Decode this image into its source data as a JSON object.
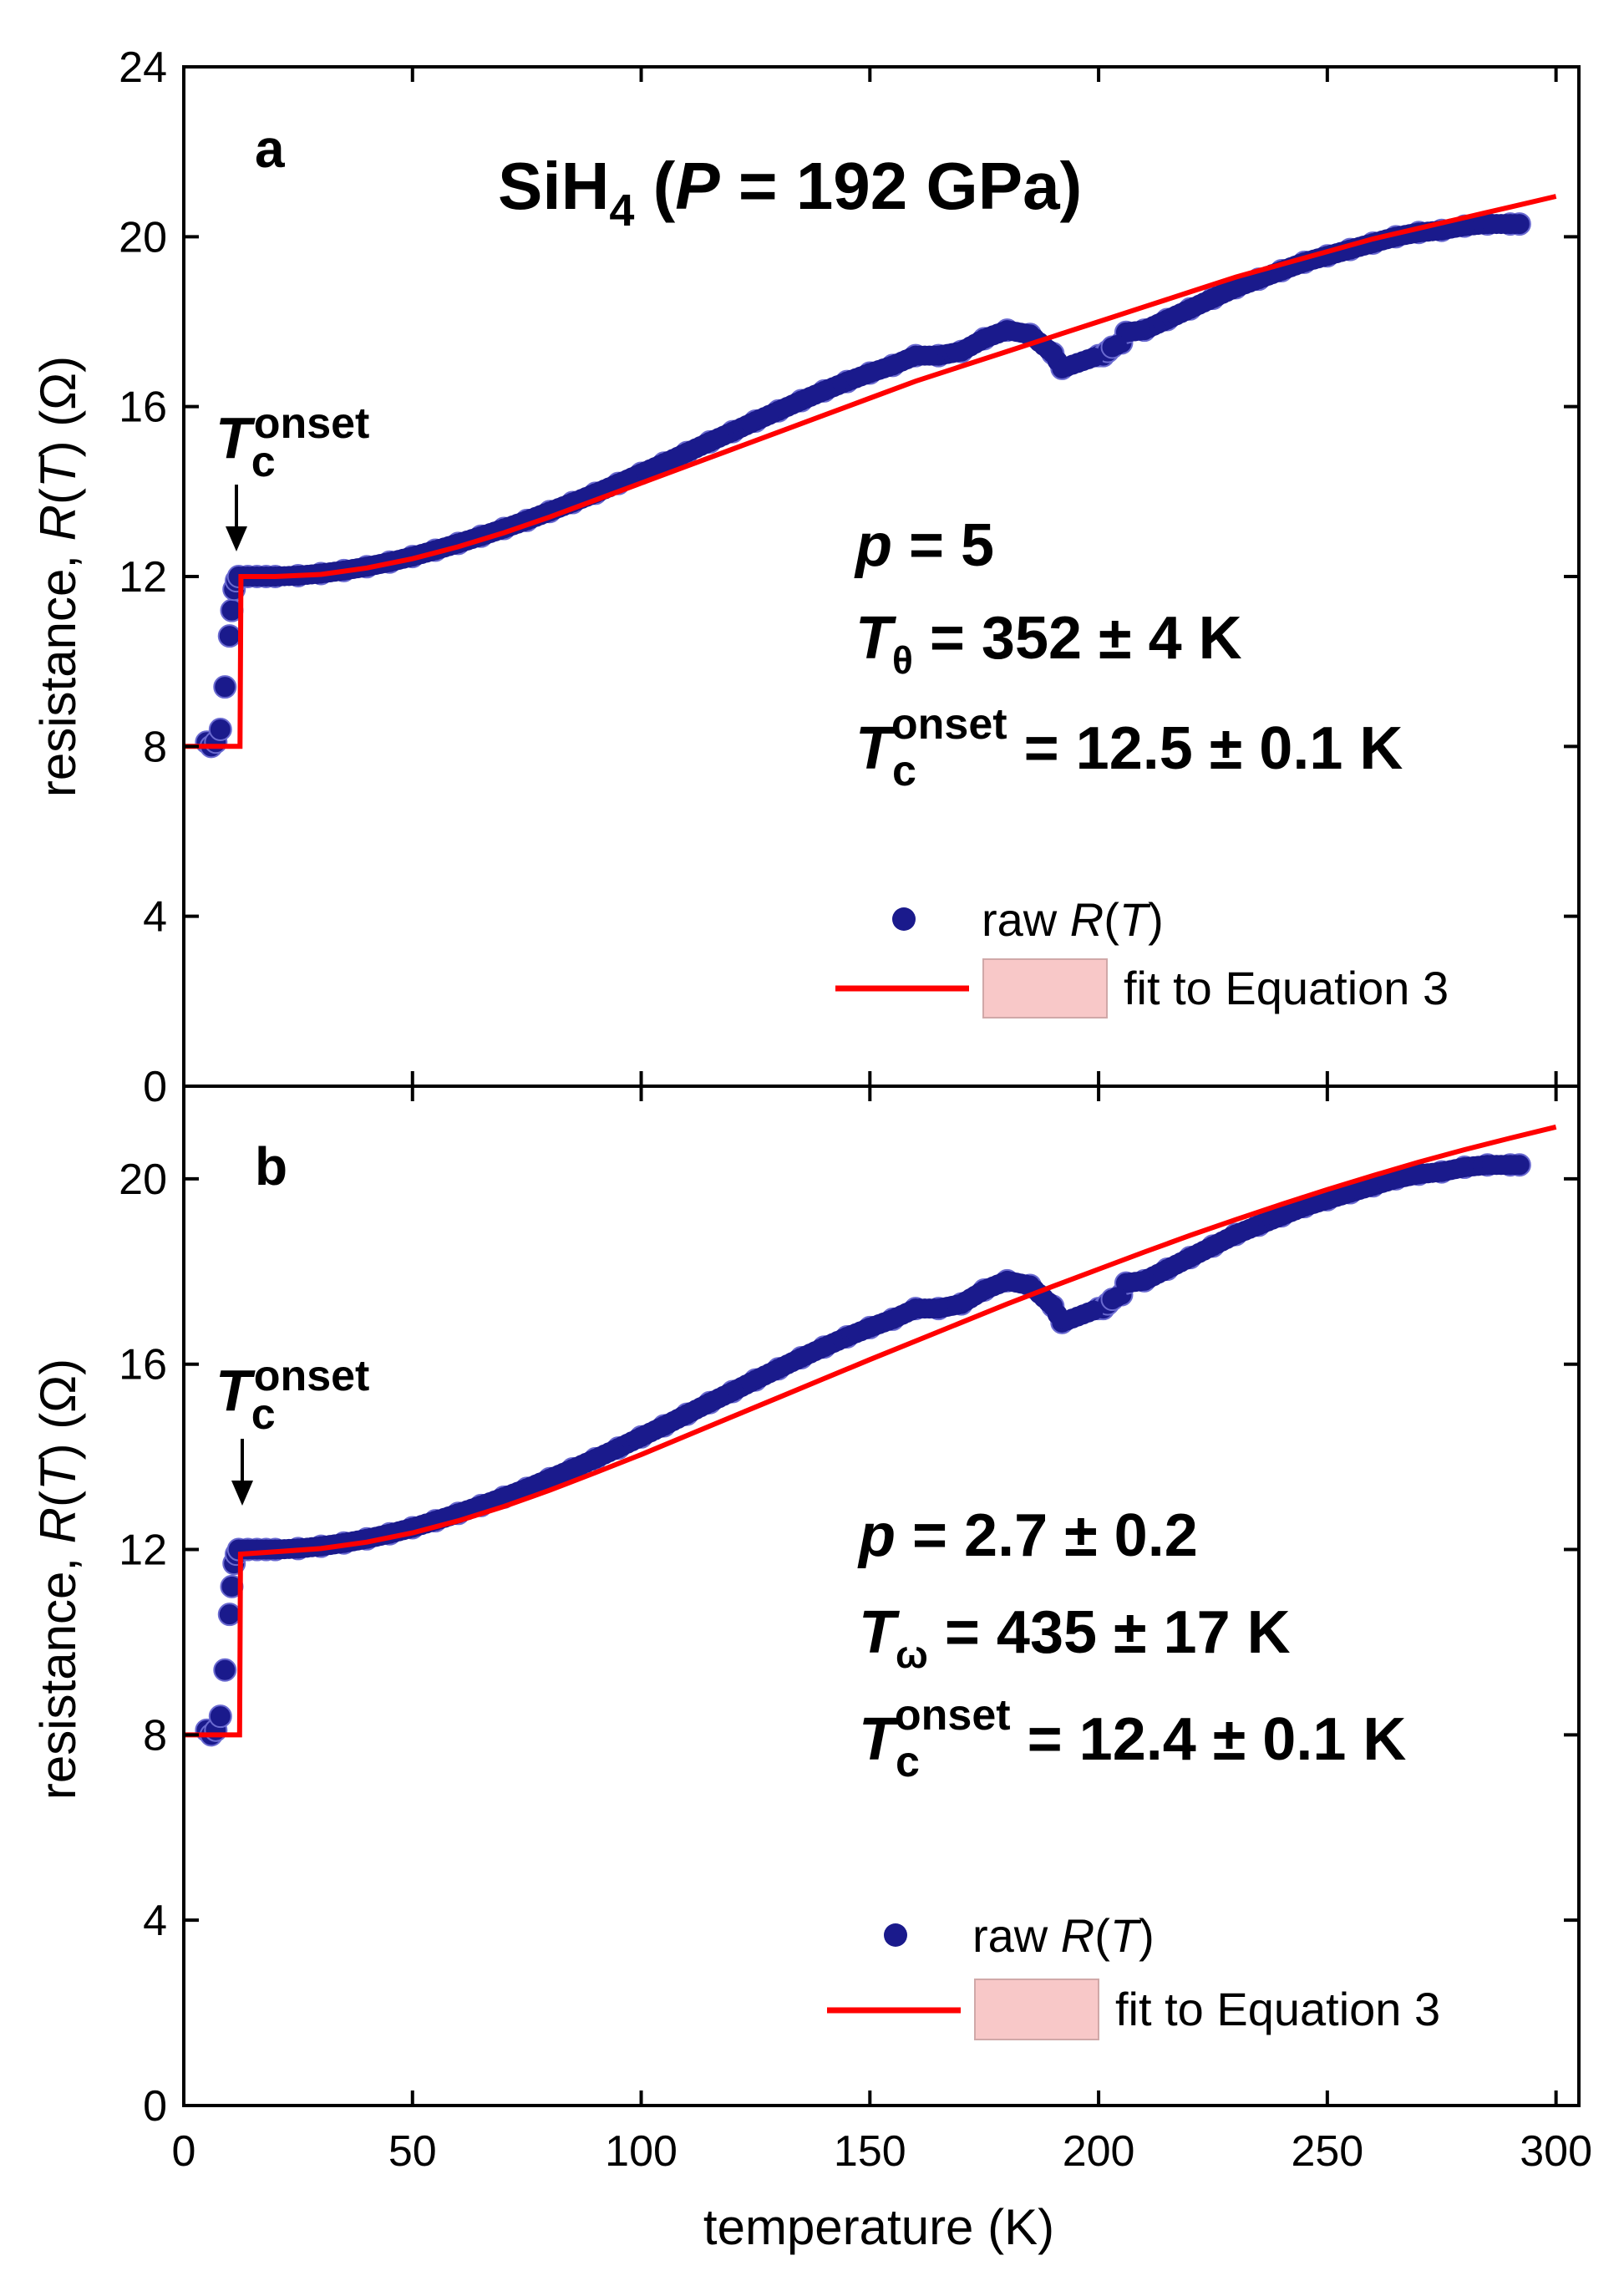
{
  "colors": {
    "raw_points": "#1a1a8c",
    "fit_line": "#ff0000",
    "fit_band": "#f8c8c8",
    "param_p": "#ff0000",
    "axes": "#000000"
  },
  "chart_data": [
    {
      "type": "scatter",
      "panel": "a",
      "title": "SiH",
      "title_sub": "4",
      "title_paren_open": " (",
      "title_var": "P",
      "title_rest": " = 192 GPa)",
      "xlabel": "temperature (K)",
      "ylabel_pre": "resistance, ",
      "ylabel_R": "R",
      "ylabel_open": "(",
      "ylabel_T": "T",
      "ylabel_post": ") (Ω)",
      "xlim": [
        0,
        305
      ],
      "ylim": [
        0,
        24
      ],
      "xticks": [
        "0",
        "50",
        "100",
        "150",
        "200",
        "250",
        "300"
      ],
      "xtick_values": [
        0,
        50,
        100,
        150,
        200,
        250,
        300
      ],
      "yticks": [
        "0",
        "4",
        "8",
        "12",
        "16",
        "20",
        "24"
      ],
      "ytick_values": [
        0,
        4,
        8,
        12,
        16,
        20,
        24
      ],
      "annotation": {
        "T": "T",
        "c": "c",
        "onset": "onset",
        "x": 11,
        "y": 12.1
      },
      "params": [
        {
          "var": "p",
          "sub": "",
          "sup": "",
          "text": " = 5"
        },
        {
          "var": "T",
          "sub": "θ",
          "sup": "",
          "text": " = 352 ± 4 K"
        },
        {
          "var": "T",
          "sub": "c",
          "sup": "onset",
          "text": " = 12.5 ± 0.1 K"
        }
      ],
      "legend": {
        "raw_pre": "raw ",
        "raw_R": "R",
        "raw_open": "(",
        "raw_T": "T",
        "raw_close": ")",
        "fit": "fit to Equation 3",
        "position": "bottom-right"
      },
      "series": [
        {
          "name": "raw R(T)",
          "x": [
            5,
            6,
            7,
            8,
            9,
            10,
            10.5,
            11,
            11.5,
            12,
            14,
            16,
            18,
            20,
            25,
            30,
            35,
            40,
            45,
            50,
            55,
            60,
            65,
            70,
            75,
            80,
            85,
            90,
            95,
            100,
            105,
            110,
            115,
            120,
            125,
            130,
            135,
            140,
            145,
            150,
            155,
            160,
            165,
            170,
            175,
            180,
            185,
            190,
            192,
            200,
            201,
            202,
            203,
            205,
            206,
            210,
            215,
            220,
            225,
            230,
            235,
            240,
            245,
            250,
            255,
            260,
            265,
            270,
            275,
            280,
            285,
            290,
            292
          ],
          "y": [
            8.1,
            8.0,
            8.1,
            8.4,
            9.4,
            10.6,
            11.2,
            11.7,
            11.9,
            12.0,
            12.0,
            12.0,
            12.0,
            12.0,
            12.02,
            12.07,
            12.14,
            12.23,
            12.34,
            12.47,
            12.62,
            12.78,
            12.95,
            13.13,
            13.32,
            13.53,
            13.74,
            13.96,
            14.19,
            14.43,
            14.67,
            14.92,
            15.17,
            15.41,
            15.66,
            15.9,
            16.14,
            16.37,
            16.59,
            16.79,
            16.97,
            17.2,
            17.2,
            17.3,
            17.6,
            17.8,
            17.7,
            17.25,
            16.9,
            17.2,
            17.2,
            17.3,
            17.4,
            17.5,
            17.75,
            17.8,
            18.05,
            18.3,
            18.55,
            18.8,
            19.0,
            19.2,
            19.4,
            19.55,
            19.7,
            19.85,
            20.0,
            20.1,
            20.15,
            20.25,
            20.3,
            20.3,
            20.3
          ]
        },
        {
          "name": "fit to Equation 3",
          "x": [
            0,
            12.3,
            12.5,
            20,
            30,
            40,
            50,
            60,
            70,
            80,
            90,
            100,
            110,
            120,
            130,
            140,
            150,
            160,
            170,
            180,
            190,
            200,
            210,
            220,
            230,
            240,
            250,
            260,
            270,
            280,
            290,
            300
          ],
          "y": [
            8.0,
            8.0,
            12.0,
            12.0,
            12.05,
            12.2,
            12.42,
            12.7,
            13.03,
            13.4,
            13.8,
            14.2,
            14.6,
            15.0,
            15.4,
            15.8,
            16.2,
            16.6,
            16.95,
            17.3,
            17.65,
            18.0,
            18.35,
            18.7,
            19.05,
            19.35,
            19.65,
            19.95,
            20.2,
            20.45,
            20.7,
            20.95
          ]
        }
      ]
    },
    {
      "type": "scatter",
      "panel": "b",
      "xlabel": "temperature (K)",
      "ylabel_pre": "resistance, ",
      "ylabel_R": "R",
      "ylabel_open": "(",
      "ylabel_T": "T",
      "ylabel_post": ") (Ω)",
      "xlim": [
        0,
        305
      ],
      "ylim": [
        0,
        22
      ],
      "xticks": [
        "0",
        "50",
        "100",
        "150",
        "200",
        "250",
        "300"
      ],
      "xtick_values": [
        0,
        50,
        100,
        150,
        200,
        250,
        300
      ],
      "yticks": [
        "0",
        "4",
        "8",
        "12",
        "16",
        "20"
      ],
      "ytick_values": [
        0,
        4,
        8,
        12,
        16,
        20
      ],
      "annotation": {
        "T": "T",
        "c": "c",
        "onset": "onset",
        "x": 11,
        "y": 12.1
      },
      "params": [
        {
          "var": "p",
          "sub": "",
          "sup": "",
          "text": " = 2.7 ± 0.2"
        },
        {
          "var": "T",
          "sub": "ω",
          "sup": "",
          "text": " = 435 ± 17 K"
        },
        {
          "var": "T",
          "sub": "c",
          "sup": "onset",
          "text": " = 12.4 ± 0.1 K"
        }
      ],
      "legend": {
        "raw_pre": "raw ",
        "raw_R": "R",
        "raw_open": "(",
        "raw_T": "T",
        "raw_close": ")",
        "fit": "fit to Equation 3",
        "position": "bottom-right"
      },
      "series": [
        {
          "name": "raw R(T)",
          "x": [
            5,
            6,
            7,
            8,
            9,
            10,
            10.5,
            11,
            11.5,
            12,
            14,
            16,
            18,
            20,
            25,
            30,
            35,
            40,
            45,
            50,
            55,
            60,
            65,
            70,
            75,
            80,
            85,
            90,
            95,
            100,
            105,
            110,
            115,
            120,
            125,
            130,
            135,
            140,
            145,
            150,
            155,
            160,
            165,
            170,
            175,
            180,
            185,
            190,
            192,
            200,
            201,
            202,
            203,
            205,
            206,
            210,
            215,
            220,
            225,
            230,
            235,
            240,
            245,
            250,
            255,
            260,
            265,
            270,
            275,
            280,
            285,
            290,
            292
          ],
          "y": [
            8.1,
            8.0,
            8.1,
            8.4,
            9.4,
            10.6,
            11.2,
            11.7,
            11.9,
            12.0,
            12.0,
            12.0,
            12.0,
            12.0,
            12.02,
            12.07,
            12.14,
            12.23,
            12.34,
            12.47,
            12.62,
            12.78,
            12.95,
            13.13,
            13.32,
            13.53,
            13.74,
            13.96,
            14.19,
            14.43,
            14.67,
            14.92,
            15.17,
            15.41,
            15.66,
            15.9,
            16.14,
            16.37,
            16.59,
            16.79,
            16.97,
            17.2,
            17.2,
            17.3,
            17.6,
            17.8,
            17.7,
            17.25,
            16.9,
            17.2,
            17.2,
            17.3,
            17.4,
            17.5,
            17.75,
            17.8,
            18.05,
            18.3,
            18.55,
            18.8,
            19.0,
            19.2,
            19.4,
            19.55,
            19.7,
            19.85,
            20.0,
            20.1,
            20.15,
            20.25,
            20.3,
            20.3,
            20.3
          ]
        },
        {
          "name": "fit to Equation 3",
          "x": [
            0,
            12.2,
            12.4,
            20,
            30,
            40,
            50,
            60,
            70,
            80,
            90,
            100,
            110,
            120,
            130,
            140,
            150,
            160,
            170,
            180,
            190,
            200,
            210,
            220,
            230,
            240,
            250,
            260,
            270,
            280,
            290,
            300
          ],
          "y": [
            8.0,
            8.0,
            11.9,
            11.95,
            12.02,
            12.16,
            12.36,
            12.62,
            12.93,
            13.28,
            13.66,
            14.05,
            14.46,
            14.87,
            15.28,
            15.69,
            16.1,
            16.5,
            16.9,
            17.3,
            17.68,
            18.05,
            18.42,
            18.78,
            19.12,
            19.45,
            19.77,
            20.07,
            20.36,
            20.63,
            20.88,
            21.12
          ]
        }
      ]
    }
  ]
}
